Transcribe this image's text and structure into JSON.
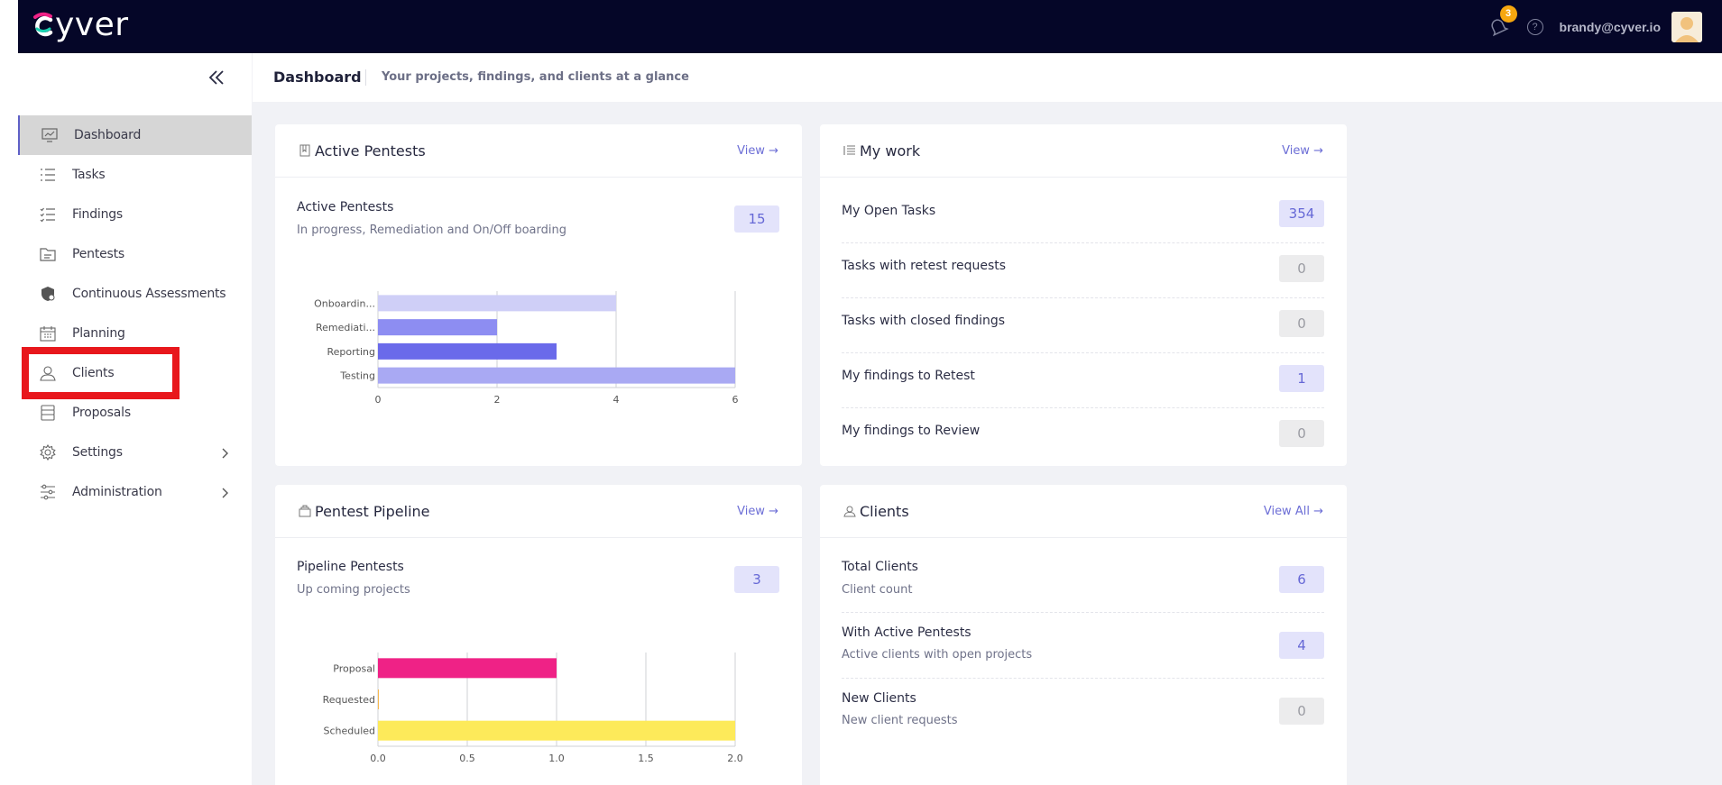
{
  "app": {
    "logo_text": "yver",
    "notification_count": "3",
    "help_glyph": "?",
    "user_email": "brandy@cyver.io",
    "icons": {
      "bell": "bell-icon",
      "help": "help-icon",
      "avatar": "avatar",
      "collapse": "double-chevron-left-icon"
    }
  },
  "header": {
    "title": "Dashboard",
    "subtitle": "Your projects, findings, and clients at a glance"
  },
  "sidebar": {
    "items": [
      {
        "label": "Dashboard",
        "icon": "monitor-chart-icon",
        "active": true
      },
      {
        "label": "Tasks",
        "icon": "list-icon"
      },
      {
        "label": "Findings",
        "icon": "checklist-icon"
      },
      {
        "label": "Pentests",
        "icon": "folder-icon"
      },
      {
        "label": "Continuous Assessments",
        "icon": "shield-icon"
      },
      {
        "label": "Planning",
        "icon": "calendar-icon"
      },
      {
        "label": "Clients",
        "icon": "user-icon"
      },
      {
        "label": "Proposals",
        "icon": "stack-icon"
      },
      {
        "label": "Settings",
        "icon": "gear-icon",
        "has_submenu": true
      },
      {
        "label": "Administration",
        "icon": "sliders-icon",
        "has_submenu": true
      }
    ]
  },
  "cards": {
    "active_pentests": {
      "title": "Active Pentests",
      "link": "View",
      "stat_title": "Active Pentests",
      "stat_sub": "In progress, Remediation and On/Off boarding",
      "stat_value": "15"
    },
    "my_work": {
      "title": "My work",
      "link": "View",
      "rows": [
        {
          "label": "My Open Tasks",
          "value": "354",
          "style": "blue"
        },
        {
          "label": "Tasks with retest requests",
          "value": "0",
          "style": "gray"
        },
        {
          "label": "Tasks with closed findings",
          "value": "0",
          "style": "gray"
        },
        {
          "label": "My findings to Retest",
          "value": "1",
          "style": "blue"
        },
        {
          "label": "My findings to Review",
          "value": "0",
          "style": "gray"
        }
      ]
    },
    "pipeline": {
      "title": "Pentest Pipeline",
      "link": "View",
      "stat_title": "Pipeline Pentests",
      "stat_sub": "Up coming projects",
      "stat_value": "3"
    },
    "clients": {
      "title": "Clients",
      "link": "View All",
      "rows": [
        {
          "label": "Total Clients",
          "sub": "Client count",
          "value": "6",
          "style": "blue"
        },
        {
          "label": "With Active Pentests",
          "sub": "Active clients with open projects",
          "value": "4",
          "style": "blue"
        },
        {
          "label": "New Clients",
          "sub": "New client requests",
          "value": "0",
          "style": "gray"
        }
      ]
    }
  },
  "chart_data": [
    {
      "type": "bar",
      "orientation": "horizontal",
      "title": "Active Pentests",
      "categories": [
        "Onboardin...",
        "Remediati...",
        "Reporting",
        "Testing"
      ],
      "values": [
        4,
        2,
        3,
        6
      ],
      "colors": [
        "#cfcff7",
        "#8d8df2",
        "#6a6aea",
        "#a9a9f3"
      ],
      "xlim": [
        0,
        6
      ],
      "xticks": [
        "0",
        "2",
        "4",
        "6"
      ],
      "tick_values": [
        0,
        2,
        4,
        6
      ]
    },
    {
      "type": "bar",
      "orientation": "horizontal",
      "title": "Pentest Pipeline",
      "categories": [
        "Proposal",
        "Requested",
        "Scheduled"
      ],
      "values": [
        1,
        0,
        2
      ],
      "colors": [
        "#ef2286",
        "#f5a623",
        "#fdea5a"
      ],
      "xlim": [
        0,
        2
      ],
      "xticks": [
        "0.0",
        "0.5",
        "1.0",
        "1.5",
        "2.0"
      ],
      "tick_values": [
        0,
        0.5,
        1,
        1.5,
        2
      ]
    }
  ]
}
